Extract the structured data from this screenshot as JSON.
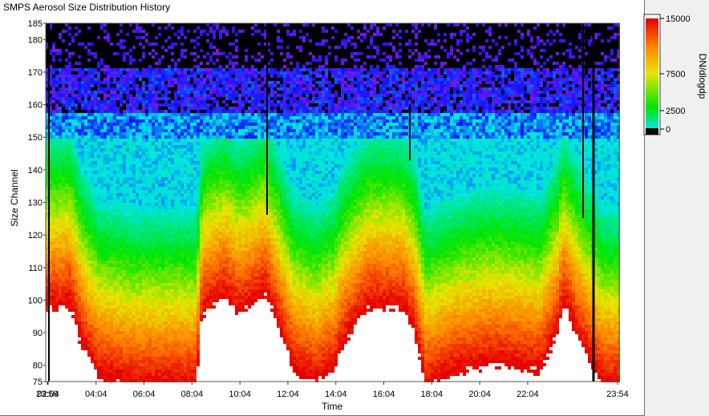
{
  "window": {
    "title": "SMPS Aerosol Size Distribution History"
  },
  "chart_data": {
    "type": "heatmap",
    "title": "SMPS Aerosol Size Distribution History",
    "xlabel": "Time",
    "ylabel": "Size Channel",
    "x_ticks": [
      "23:59",
      "02:04",
      "04:04",
      "06:04",
      "08:04",
      "10:04",
      "12:04",
      "14:04",
      "16:04",
      "18:04",
      "20:04",
      "22:04",
      "23:54"
    ],
    "y_ticks": [
      75,
      80,
      90,
      100,
      110,
      120,
      130,
      140,
      150,
      160,
      170,
      180,
      185
    ],
    "ylim": [
      75,
      185
    ],
    "colorbar": {
      "label": "DN/dlogdp",
      "ticks": [
        0,
        2500,
        7500,
        15000
      ],
      "tick_labels": [
        "0",
        "2500",
        "7500",
        "15000"
      ],
      "range": [
        0,
        15000
      ],
      "colors": [
        "#000000",
        "#8a1ae6",
        "#1010ff",
        "#00e6e6",
        "#00e600",
        "#e6e600",
        "#ff8000",
        "#e60000"
      ]
    },
    "grid": false
  }
}
